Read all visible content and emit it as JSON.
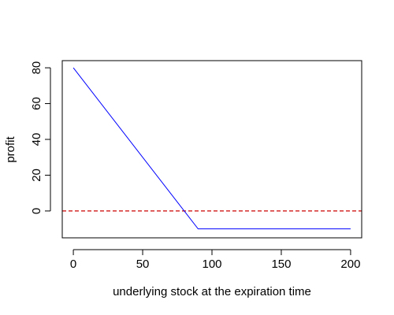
{
  "chart_data": {
    "type": "line",
    "title": "",
    "xlabel": "underlying stock at the expiration time",
    "ylabel": "profit",
    "xlim": [
      -8,
      208
    ],
    "ylim": [
      -15,
      84
    ],
    "xticks": [
      0,
      50,
      100,
      150,
      200
    ],
    "yticks": [
      0,
      20,
      40,
      60,
      80
    ],
    "grid": false,
    "legend": "none",
    "series": [
      {
        "x": [
          0,
          90,
          200
        ],
        "y": [
          80,
          -10,
          -10
        ],
        "color": "#0000ff",
        "line_style": "solid"
      }
    ],
    "reference_lines": [
      {
        "y": 0,
        "color": "#cc0000",
        "line_style": "dashed"
      }
    ]
  }
}
